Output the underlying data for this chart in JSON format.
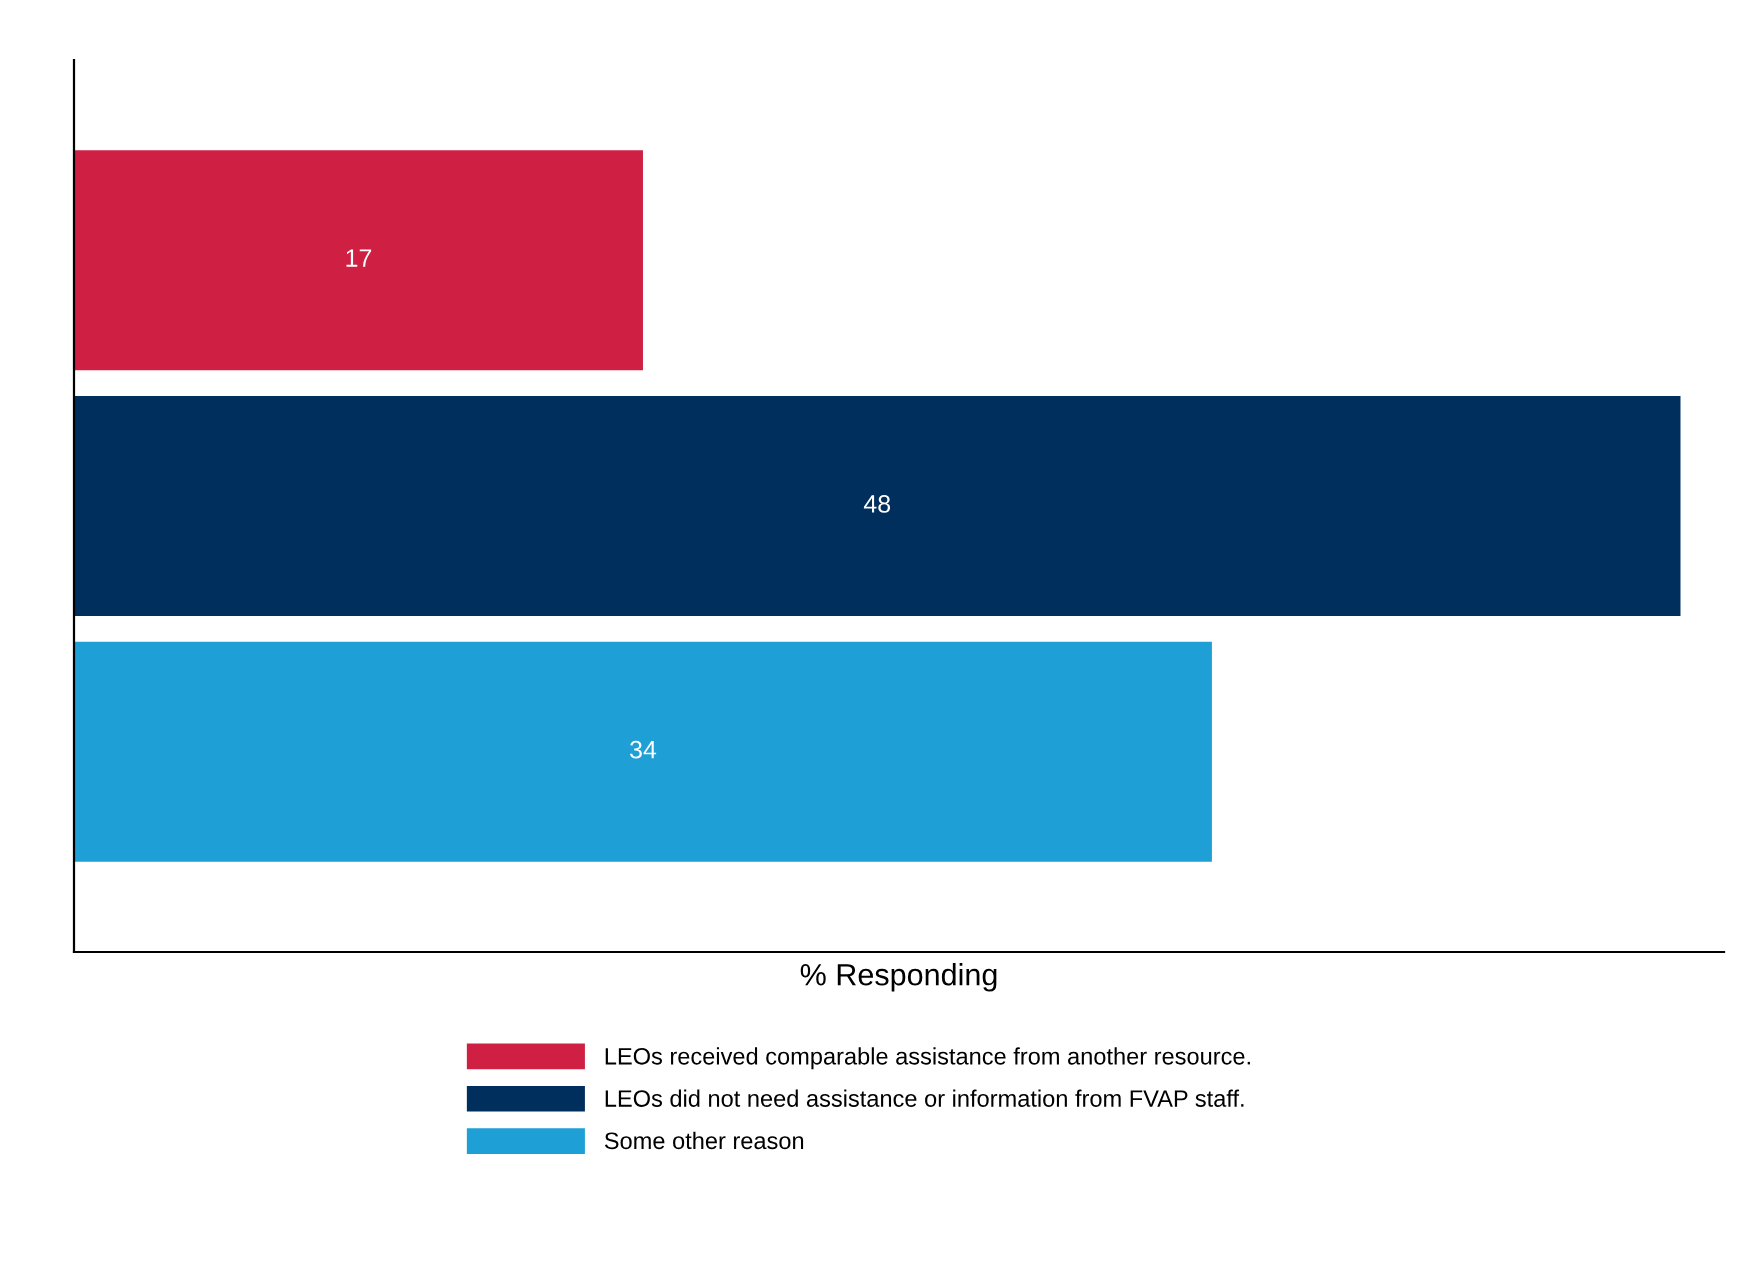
{
  "chart_data": {
    "type": "bar",
    "orientation": "horizontal",
    "categories": [
      null
    ],
    "series": [
      {
        "name": "LEOs received comparable assistance from another resource.",
        "color": "#cf2043",
        "values": [
          17
        ]
      },
      {
        "name": "LEOs did not need assistance or information from FVAP staff.",
        "color": "#002e5d",
        "values": [
          48
        ]
      },
      {
        "name": "Some other reason",
        "color": "#1ea0d7",
        "values": [
          34
        ]
      }
    ],
    "xlim": [
      0,
      49.3
    ],
    "xlabel": "% Responding",
    "data_labels": true,
    "legend": "bottom"
  }
}
